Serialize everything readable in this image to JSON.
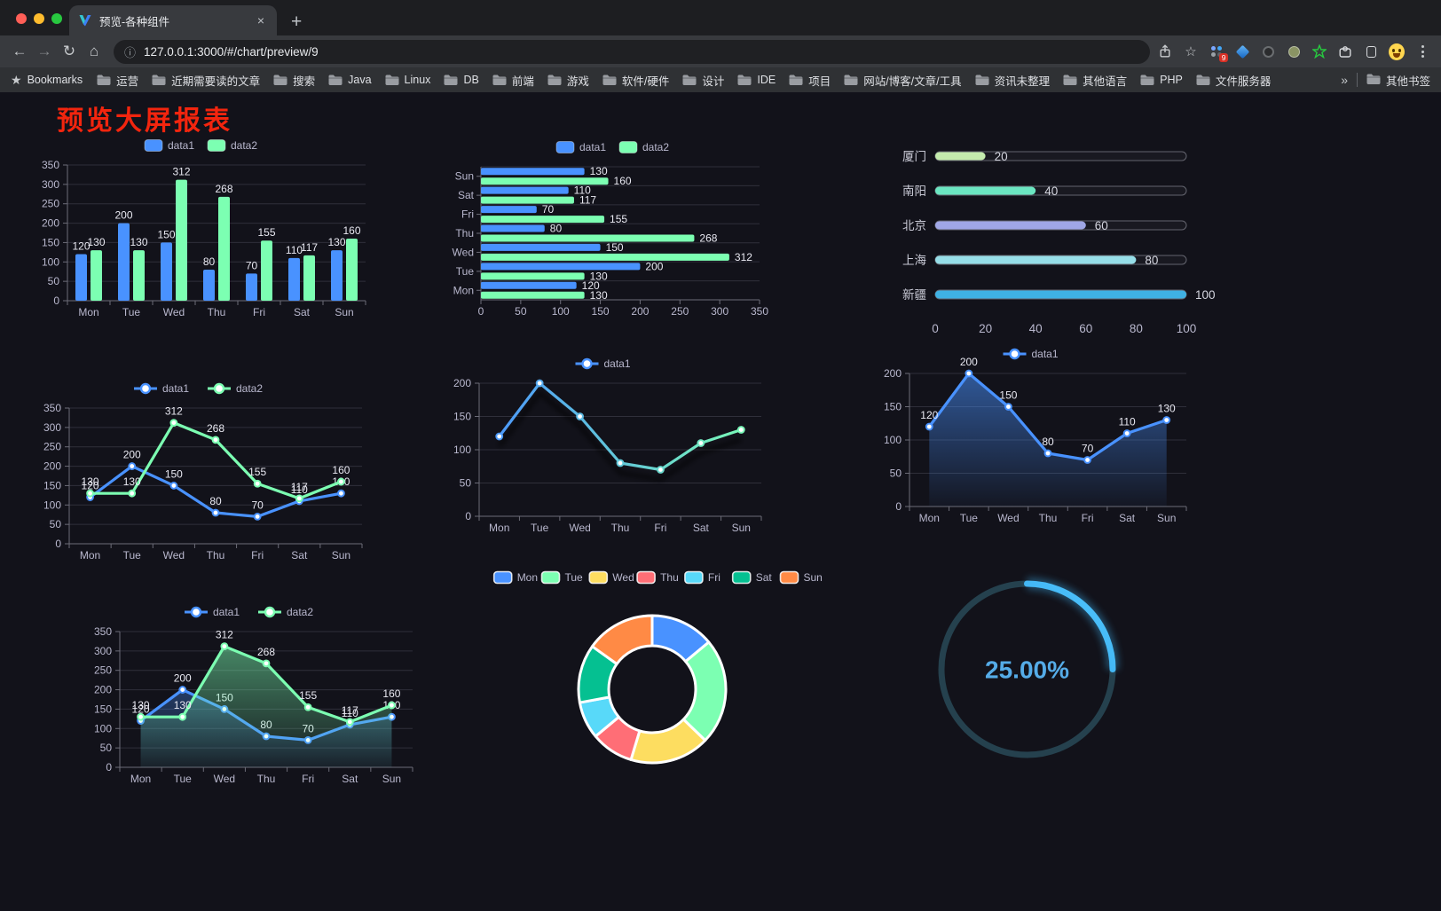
{
  "browser": {
    "tab_title": "预览-各种组件",
    "close_tab": "×",
    "new_tab_button": "+",
    "url": "127.0.0.1:3000/#/chart/preview/9",
    "bookmarks_label": "Bookmarks",
    "bookmarks": [
      "运营",
      "近期需要读的文章",
      "搜索",
      "Java",
      "Linux",
      "DB",
      "前端",
      "游戏",
      "软件/硬件",
      "设计",
      "IDE",
      "项目",
      "网站/博客/文章/工具",
      "资讯未整理",
      "其他语言",
      "PHP",
      "文件服务器"
    ],
    "overflow_chevron": "»",
    "other_bookmarks": "其他书签",
    "extension_badge": "9"
  },
  "page": {
    "title": "预览大屏报表",
    "title_color": "#f3250e",
    "background": "#12121a"
  },
  "theme": {
    "axis_text": "#b9b8ce",
    "axis_line": "#6c6c78",
    "grid": "rgba(185,184,206,0.18)",
    "data_label": "#e9e9f2",
    "legend_text": "#b9b8ce"
  },
  "chart_data": [
    {
      "type": "bar",
      "title": "",
      "categories": [
        "Mon",
        "Tue",
        "Wed",
        "Thu",
        "Fri",
        "Sat",
        "Sun"
      ],
      "series": [
        {
          "name": "data1",
          "color": "#4992ff",
          "values": [
            120,
            200,
            150,
            80,
            70,
            110,
            130
          ]
        },
        {
          "name": "data2",
          "color": "#7cffb2",
          "values": [
            130,
            130,
            312,
            268,
            155,
            117,
            160
          ]
        }
      ],
      "ylim": [
        0,
        350
      ],
      "ystep": 50,
      "labels": true,
      "legend_position": "top"
    },
    {
      "type": "hbar",
      "categories": [
        "Sun",
        "Sat",
        "Fri",
        "Thu",
        "Wed",
        "Tue",
        "Mon"
      ],
      "series": [
        {
          "name": "data1",
          "color": "#4992ff",
          "values": [
            130,
            110,
            70,
            80,
            150,
            200,
            120
          ]
        },
        {
          "name": "data2",
          "color": "#7cffb2",
          "values": [
            160,
            117,
            155,
            268,
            312,
            130,
            130
          ]
        }
      ],
      "xlim": [
        0,
        350
      ],
      "xstep": 50,
      "labels": true,
      "legend_position": "top"
    },
    {
      "type": "progress",
      "max": 100,
      "ticks": [
        0,
        20,
        40,
        60,
        80,
        100
      ],
      "items": [
        {
          "label": "厦门",
          "value": 20,
          "color": "#c4ebad"
        },
        {
          "label": "南阳",
          "value": 40,
          "color": "#6be6c1"
        },
        {
          "label": "北京",
          "value": 60,
          "color": "#a0a7e6"
        },
        {
          "label": "上海",
          "value": 80,
          "color": "#96dee8"
        },
        {
          "label": "新疆",
          "value": 100,
          "color": "#3fb1e3"
        }
      ]
    },
    {
      "type": "line",
      "categories": [
        "Mon",
        "Tue",
        "Wed",
        "Thu",
        "Fri",
        "Sat",
        "Sun"
      ],
      "series": [
        {
          "name": "data1",
          "color": "#4992ff",
          "values": [
            120,
            200,
            150,
            80,
            70,
            110,
            130
          ]
        },
        {
          "name": "data2",
          "color": "#7cffb2",
          "values": [
            130,
            130,
            312,
            268,
            155,
            117,
            160
          ]
        }
      ],
      "ylim": [
        0,
        350
      ],
      "ystep": 50,
      "labels": true,
      "legend_position": "top"
    },
    {
      "type": "line",
      "categories": [
        "Mon",
        "Tue",
        "Wed",
        "Thu",
        "Fri",
        "Sat",
        "Sun"
      ],
      "series": [
        {
          "name": "data1",
          "color": "#4992ff",
          "gradient": [
            "#4992ff",
            "#7cffb2"
          ],
          "values": [
            120,
            200,
            150,
            80,
            70,
            110,
            130
          ]
        }
      ],
      "ylim": [
        0,
        200
      ],
      "ystep": 50,
      "labels": false,
      "shadow": true,
      "legend_position": "top"
    },
    {
      "type": "line",
      "categories": [
        "Mon",
        "Tue",
        "Wed",
        "Thu",
        "Fri",
        "Sat",
        "Sun"
      ],
      "series": [
        {
          "name": "data1",
          "color": "#4992ff",
          "area": true,
          "values": [
            120,
            200,
            150,
            80,
            70,
            110,
            130
          ]
        }
      ],
      "ylim": [
        0,
        200
      ],
      "ystep": 50,
      "labels": true,
      "legend_position": "top"
    },
    {
      "type": "line",
      "categories": [
        "Mon",
        "Tue",
        "Wed",
        "Thu",
        "Fri",
        "Sat",
        "Sun"
      ],
      "series": [
        {
          "name": "data1",
          "color": "#4992ff",
          "area": true,
          "values": [
            120,
            200,
            150,
            80,
            70,
            110,
            130
          ]
        },
        {
          "name": "data2",
          "color": "#7cffb2",
          "area": true,
          "values": [
            130,
            130,
            312,
            268,
            155,
            117,
            160
          ]
        }
      ],
      "ylim": [
        0,
        350
      ],
      "ystep": 50,
      "labels": true,
      "legend_position": "top"
    },
    {
      "type": "donut",
      "categories": [
        "Mon",
        "Tue",
        "Wed",
        "Thu",
        "Fri",
        "Sat",
        "Sun"
      ],
      "values": [
        120,
        200,
        150,
        80,
        70,
        110,
        130
      ],
      "colors": [
        "#4992ff",
        "#7cffb2",
        "#fddd60",
        "#ff6e76",
        "#58d9f9",
        "#05c091",
        "#ff8a45"
      ],
      "border_color": "#ffffff",
      "legend_position": "top"
    },
    {
      "type": "gauge",
      "value": 25,
      "max": 100,
      "text": "25.00%",
      "bar_colors": [
        "#1789d6",
        "#52c7ff"
      ],
      "track_color": "#25414e",
      "glow_color": "#41bdff",
      "text_color": "#55ace8"
    }
  ]
}
